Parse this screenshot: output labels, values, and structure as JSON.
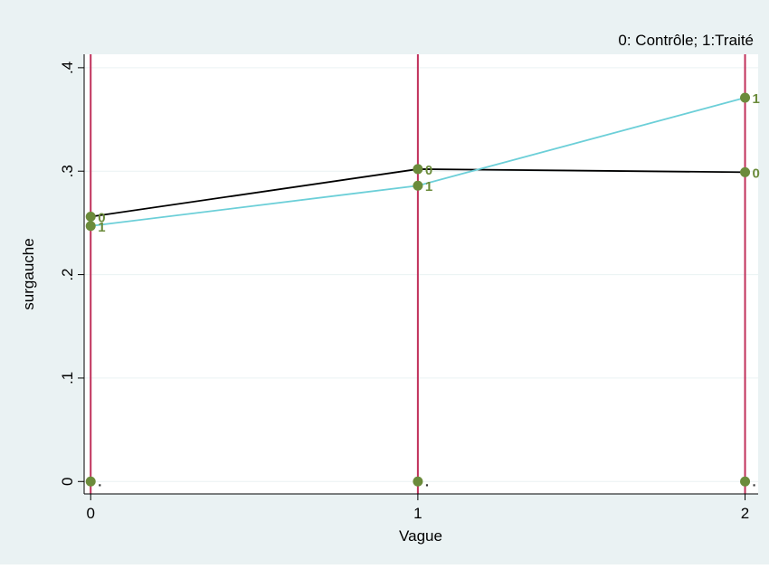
{
  "chart_data": {
    "type": "line",
    "title": "0: Contrôle; 1:Traité",
    "xlabel": "Vague",
    "ylabel": "surgauche",
    "x": [
      0,
      1,
      2
    ],
    "xticks": [
      "0",
      "1",
      "2"
    ],
    "yticks": [
      {
        "value": 0,
        "label": "0"
      },
      {
        "value": 0.1,
        "label": ".1"
      },
      {
        "value": 0.2,
        "label": ".2"
      },
      {
        "value": 0.3,
        "label": ".3"
      },
      {
        "value": 0.4,
        "label": ".4"
      }
    ],
    "xlim": [
      -0.02,
      2.04
    ],
    "ylim": [
      -0.012,
      0.413
    ],
    "grid": true,
    "series": [
      {
        "values": [
          0.256,
          0.302,
          0.299
        ],
        "point_labels": [
          "0",
          "0",
          "0"
        ],
        "color": "#000000"
      },
      {
        "values": [
          0.247,
          0.286,
          0.371
        ],
        "point_labels": [
          "1",
          "1",
          "1"
        ],
        "color": "#6ccfd8"
      }
    ],
    "baseline_points": {
      "values": [
        0,
        0,
        0
      ],
      "point_labels": [
        ".",
        ".",
        "."
      ]
    },
    "vertical_lines": [
      0,
      1,
      2
    ],
    "colors": {
      "background": "#eaf2f3",
      "plot_background": "#ffffff",
      "grid": "#eaf2f3",
      "vertical_line": "#c0305a",
      "marker": "#6b8b3b",
      "marker_label": "#6b8b3b",
      "axis": "#000000"
    }
  }
}
